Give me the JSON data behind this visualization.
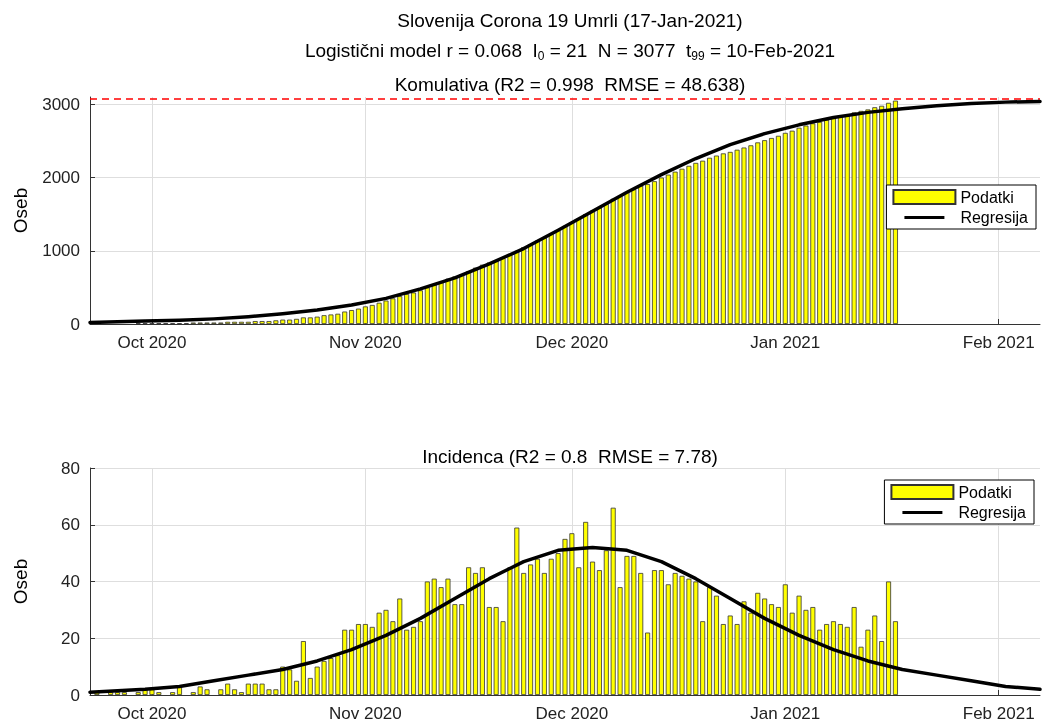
{
  "chart_data": [
    {
      "type": "bar",
      "title": "Slovenija Corona 19 Umrli (17-Jan-2021)",
      "subtitle": "Logistični model r = 0.068  I$_{0}$ = 21  N = 3077  t$_{99}$ = 10-Feb-2021",
      "annotations": [
        "Komulativa (R2 = 0.998  RMSE = 48.638)"
      ],
      "ylabel": "Oseb",
      "x": [
        "2020-09-23",
        "2020-09-24",
        "2020-09-25",
        "2020-09-26",
        "2020-09-27",
        "2020-09-28",
        "2020-09-29",
        "2020-09-30",
        "2020-10-01",
        "2020-10-02",
        "2020-10-03",
        "2020-10-04",
        "2020-10-05",
        "2020-10-06",
        "2020-10-07",
        "2020-10-08",
        "2020-10-09",
        "2020-10-10",
        "2020-10-11",
        "2020-10-12",
        "2020-10-13",
        "2020-10-14",
        "2020-10-15",
        "2020-10-16",
        "2020-10-17",
        "2020-10-18",
        "2020-10-19",
        "2020-10-20",
        "2020-10-21",
        "2020-10-22",
        "2020-10-23",
        "2020-10-24",
        "2020-10-25",
        "2020-10-26",
        "2020-10-27",
        "2020-10-28",
        "2020-10-29",
        "2020-10-30",
        "2020-10-31",
        "2020-11-01",
        "2020-11-02",
        "2020-11-03",
        "2020-11-04",
        "2020-11-05",
        "2020-11-06",
        "2020-11-07",
        "2020-11-08",
        "2020-11-09",
        "2020-11-10",
        "2020-11-11",
        "2020-11-12",
        "2020-11-13",
        "2020-11-14",
        "2020-11-15",
        "2020-11-16",
        "2020-11-17",
        "2020-11-18",
        "2020-11-19",
        "2020-11-20",
        "2020-11-21",
        "2020-11-22",
        "2020-11-23",
        "2020-11-24",
        "2020-11-25",
        "2020-11-26",
        "2020-11-27",
        "2020-11-28",
        "2020-11-29",
        "2020-11-30",
        "2020-12-01",
        "2020-12-02",
        "2020-12-03",
        "2020-12-04",
        "2020-12-05",
        "2020-12-06",
        "2020-12-07",
        "2020-12-08",
        "2020-12-09",
        "2020-12-10",
        "2020-12-11",
        "2020-12-12",
        "2020-12-13",
        "2020-12-14",
        "2020-12-15",
        "2020-12-16",
        "2020-12-17",
        "2020-12-18",
        "2020-12-19",
        "2020-12-20",
        "2020-12-21",
        "2020-12-22",
        "2020-12-23",
        "2020-12-24",
        "2020-12-25",
        "2020-12-26",
        "2020-12-27",
        "2020-12-28",
        "2020-12-29",
        "2020-12-30",
        "2020-12-31",
        "2021-01-01",
        "2021-01-02",
        "2021-01-03",
        "2021-01-04",
        "2021-01-05",
        "2021-01-06",
        "2021-01-07",
        "2021-01-08",
        "2021-01-09",
        "2021-01-10",
        "2021-01-11",
        "2021-01-12",
        "2021-01-13",
        "2021-01-14",
        "2021-01-15",
        "2021-01-16",
        "2021-01-17"
      ],
      "series": [
        {
          "name": "Podatki",
          "color": "#ffff00",
          "values": [
            0,
            0,
            0,
            0,
            0,
            0,
            10,
            10,
            10,
            10,
            10,
            10,
            10,
            10,
            20,
            20,
            20,
            20,
            20,
            30,
            30,
            30,
            30,
            40,
            40,
            40,
            50,
            60,
            60,
            70,
            90,
            90,
            100,
            120,
            130,
            140,
            170,
            190,
            210,
            240,
            260,
            290,
            320,
            350,
            380,
            410,
            430,
            460,
            500,
            540,
            570,
            620,
            650,
            680,
            720,
            770,
            810,
            840,
            870,
            900,
            950,
            1000,
            1050,
            1090,
            1140,
            1180,
            1230,
            1280,
            1340,
            1390,
            1440,
            1500,
            1550,
            1590,
            1640,
            1710,
            1750,
            1800,
            1840,
            1890,
            1910,
            1950,
            2000,
            2040,
            2080,
            2120,
            2160,
            2200,
            2230,
            2270,
            2300,
            2330,
            2350,
            2380,
            2410,
            2440,
            2480,
            2510,
            2540,
            2570,
            2610,
            2640,
            2680,
            2710,
            2740,
            2760,
            2790,
            2810,
            2840,
            2860,
            2890,
            2910,
            2930,
            2960,
            2980,
            3020,
            3050
          ]
        },
        {
          "name": "Regresija",
          "type": "line",
          "color": "#000000",
          "x": [
            "2020-09-22",
            "2020-09-30",
            "2020-10-05",
            "2020-10-10",
            "2020-10-15",
            "2020-10-20",
            "2020-10-25",
            "2020-10-30",
            "2020-11-04",
            "2020-11-09",
            "2020-11-14",
            "2020-11-19",
            "2020-11-24",
            "2020-11-29",
            "2020-12-04",
            "2020-12-09",
            "2020-12-14",
            "2020-12-19",
            "2020-12-24",
            "2020-12-29",
            "2021-01-03",
            "2021-01-08",
            "2021-01-13",
            "2021-01-18",
            "2021-01-23",
            "2021-01-28",
            "2021-02-02",
            "2021-02-07"
          ],
          "values": [
            20,
            40,
            50,
            70,
            100,
            140,
            190,
            260,
            350,
            480,
            630,
            820,
            1030,
            1280,
            1540,
            1800,
            2040,
            2260,
            2450,
            2600,
            2720,
            2820,
            2890,
            2940,
            2980,
            3010,
            3030,
            3040
          ]
        }
      ],
      "xlim": [
        "2020-09-22",
        "2021-02-07"
      ],
      "xticks": [
        {
          "value": "2020-10-01",
          "label": "Oct 2020"
        },
        {
          "value": "2020-11-01",
          "label": "Nov 2020"
        },
        {
          "value": "2020-12-01",
          "label": "Dec 2020"
        },
        {
          "value": "2021-01-01",
          "label": "Jan 2021"
        },
        {
          "value": "2021-02-01",
          "label": "Feb 2021"
        }
      ],
      "ylim": [
        0,
        3100
      ],
      "yticks": [
        0,
        1000,
        2000,
        3000
      ],
      "ref_lines": [
        {
          "axis": "y",
          "value": 3077,
          "color": "#ff0000",
          "line_style": "dashed"
        }
      ],
      "grid": true,
      "legend": "right",
      "marker": "none"
    },
    {
      "type": "bar",
      "title": "Incidenca (R2 = 0.8  RMSE = 7.78)",
      "ylabel": "Oseb",
      "x": [
        "2020-09-23",
        "2020-09-24",
        "2020-09-25",
        "2020-09-26",
        "2020-09-27",
        "2020-09-28",
        "2020-09-29",
        "2020-09-30",
        "2020-10-01",
        "2020-10-02",
        "2020-10-03",
        "2020-10-04",
        "2020-10-05",
        "2020-10-06",
        "2020-10-07",
        "2020-10-08",
        "2020-10-09",
        "2020-10-10",
        "2020-10-11",
        "2020-10-12",
        "2020-10-13",
        "2020-10-14",
        "2020-10-15",
        "2020-10-16",
        "2020-10-17",
        "2020-10-18",
        "2020-10-19",
        "2020-10-20",
        "2020-10-21",
        "2020-10-22",
        "2020-10-23",
        "2020-10-24",
        "2020-10-25",
        "2020-10-26",
        "2020-10-27",
        "2020-10-28",
        "2020-10-29",
        "2020-10-30",
        "2020-10-31",
        "2020-11-01",
        "2020-11-02",
        "2020-11-03",
        "2020-11-04",
        "2020-11-05",
        "2020-11-06",
        "2020-11-07",
        "2020-11-08",
        "2020-11-09",
        "2020-11-10",
        "2020-11-11",
        "2020-11-12",
        "2020-11-13",
        "2020-11-14",
        "2020-11-15",
        "2020-11-16",
        "2020-11-17",
        "2020-11-18",
        "2020-11-19",
        "2020-11-20",
        "2020-11-21",
        "2020-11-22",
        "2020-11-23",
        "2020-11-24",
        "2020-11-25",
        "2020-11-26",
        "2020-11-27",
        "2020-11-28",
        "2020-11-29",
        "2020-11-30",
        "2020-12-01",
        "2020-12-02",
        "2020-12-03",
        "2020-12-04",
        "2020-12-05",
        "2020-12-06",
        "2020-12-07",
        "2020-12-08",
        "2020-12-09",
        "2020-12-10",
        "2020-12-11",
        "2020-12-12",
        "2020-12-13",
        "2020-12-14",
        "2020-12-15",
        "2020-12-16",
        "2020-12-17",
        "2020-12-18",
        "2020-12-19",
        "2020-12-20",
        "2020-12-21",
        "2020-12-22",
        "2020-12-23",
        "2020-12-24",
        "2020-12-25",
        "2020-12-26",
        "2020-12-27",
        "2020-12-28",
        "2020-12-29",
        "2020-12-30",
        "2020-12-31",
        "2021-01-01",
        "2021-01-02",
        "2021-01-03",
        "2021-01-04",
        "2021-01-05",
        "2021-01-06",
        "2021-01-07",
        "2021-01-08",
        "2021-01-09",
        "2021-01-10",
        "2021-01-11",
        "2021-01-12",
        "2021-01-13",
        "2021-01-14",
        "2021-01-15",
        "2021-01-16",
        "2021-01-17"
      ],
      "series": [
        {
          "name": "Podatki",
          "color": "#ffff00",
          "values": [
            1,
            0,
            1,
            1,
            1,
            0,
            1,
            2,
            2,
            1,
            0,
            1,
            3,
            0,
            1,
            3,
            2,
            0,
            2,
            4,
            2,
            1,
            4,
            4,
            4,
            2,
            2,
            10,
            9,
            5,
            19,
            6,
            10,
            12,
            13,
            14,
            23,
            23,
            25,
            25,
            24,
            29,
            30,
            26,
            34,
            23,
            24,
            26,
            40,
            41,
            38,
            41,
            32,
            32,
            45,
            43,
            45,
            31,
            31,
            26,
            45,
            59,
            43,
            46,
            48,
            43,
            48,
            50,
            55,
            57,
            45,
            61,
            47,
            44,
            51,
            66,
            38,
            49,
            49,
            43,
            22,
            44,
            44,
            39,
            43,
            42,
            41,
            40,
            26,
            38,
            35,
            25,
            28,
            25,
            33,
            29,
            36,
            34,
            32,
            31,
            39,
            29,
            35,
            30,
            31,
            23,
            25,
            26,
            25,
            24,
            31,
            17,
            23,
            28,
            19,
            40,
            26
          ]
        },
        {
          "name": "Regresija",
          "type": "line",
          "color": "#000000",
          "x": [
            "2020-09-22",
            "2020-09-30",
            "2020-10-05",
            "2020-10-10",
            "2020-10-15",
            "2020-10-20",
            "2020-10-25",
            "2020-10-30",
            "2020-11-04",
            "2020-11-09",
            "2020-11-14",
            "2020-11-19",
            "2020-11-24",
            "2020-11-29",
            "2020-12-04",
            "2020-12-09",
            "2020-12-14",
            "2020-12-19",
            "2020-12-24",
            "2020-12-29",
            "2021-01-03",
            "2021-01-08",
            "2021-01-13",
            "2021-01-18",
            "2021-01-23",
            "2021-01-28",
            "2021-02-02",
            "2021-02-07"
          ],
          "values": [
            1,
            2,
            3,
            5,
            7,
            9,
            12,
            16,
            21,
            27,
            34,
            41,
            47,
            51,
            52,
            51,
            47,
            41,
            34,
            27,
            21,
            16,
            12,
            9,
            7,
            5,
            3,
            2
          ]
        }
      ],
      "xlim": [
        "2020-09-22",
        "2021-02-07"
      ],
      "xticks": [
        {
          "value": "2020-10-01",
          "label": "Oct 2020"
        },
        {
          "value": "2020-11-01",
          "label": "Nov 2020"
        },
        {
          "value": "2020-12-01",
          "label": "Dec 2020"
        },
        {
          "value": "2021-01-01",
          "label": "Jan 2021"
        },
        {
          "value": "2021-02-01",
          "label": "Feb 2021"
        }
      ],
      "ylim": [
        0,
        80
      ],
      "yticks": [
        0,
        20,
        40,
        60,
        80
      ],
      "grid": true,
      "legend": "top right",
      "marker": "none"
    }
  ]
}
